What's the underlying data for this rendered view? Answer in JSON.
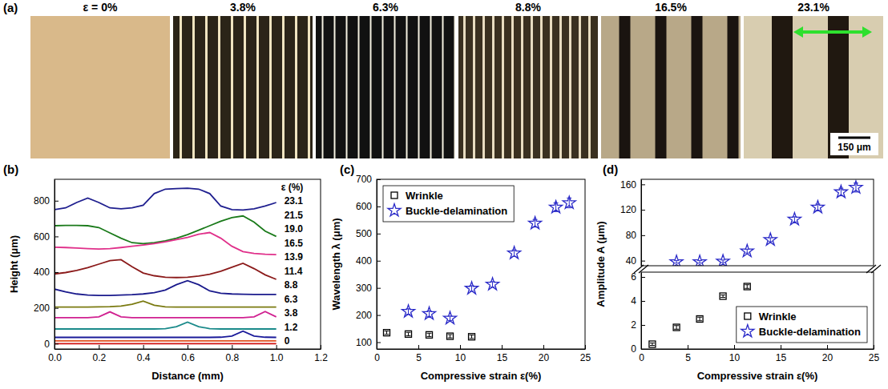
{
  "chart_data": [
    {
      "type": "image",
      "panel": "(a)",
      "labels": [
        "ε = 0%",
        "3.8%",
        "6.3%",
        "8.8%",
        "16.5%",
        "23.1%"
      ],
      "scale_bar": "150 μm"
    },
    {
      "type": "line",
      "panel": "(b)",
      "x_label": "Distance (mm)",
      "y_label": "Height (μm)",
      "annotation": "ε (%)",
      "x": [
        0,
        0.05,
        0.1,
        0.15,
        0.2,
        0.25,
        0.3,
        0.35,
        0.4,
        0.45,
        0.5,
        0.55,
        0.6,
        0.65,
        0.7,
        0.75,
        0.8,
        0.85,
        0.9,
        0.95,
        1.0
      ],
      "xlim": [
        0,
        1.2
      ],
      "xticks": [
        {
          "value": 0,
          "label": "0.0"
        },
        0.2,
        0.4,
        0.6,
        0.8,
        {
          "value": 1,
          "label": "1.0"
        },
        1.2
      ],
      "ylim": [
        -30,
        920
      ],
      "yticks": [
        0,
        200,
        400,
        600,
        800
      ],
      "series": [
        {
          "name": "23.1",
          "color": "#1f1f8f",
          "values": [
            750,
            760,
            790,
            815,
            790,
            760,
            755,
            760,
            775,
            840,
            865,
            868,
            870,
            865,
            840,
            770,
            750,
            748,
            755,
            770,
            790
          ]
        },
        {
          "name": "21.5",
          "color": "#1a7a1a",
          "values": [
            660,
            662,
            662,
            660,
            650,
            620,
            590,
            565,
            560,
            565,
            575,
            590,
            610,
            635,
            660,
            685,
            705,
            715,
            680,
            630,
            600
          ]
        },
        {
          "name": "19.0",
          "color": "#e0308a",
          "values": [
            540,
            538,
            535,
            532,
            530,
            532,
            538,
            545,
            552,
            560,
            570,
            582,
            595,
            612,
            622,
            590,
            545,
            515,
            505,
            500,
            498
          ]
        },
        {
          "name": "16.5",
          "color": "#8b1a1a",
          "values": [
            390,
            398,
            410,
            425,
            445,
            465,
            470,
            430,
            395,
            380,
            372,
            370,
            372,
            378,
            388,
            405,
            428,
            450,
            420,
            385,
            360
          ]
        },
        {
          "name": "13.9",
          "color": "#1a1a8c",
          "values": [
            305,
            290,
            278,
            272,
            270,
            270,
            272,
            274,
            278,
            285,
            300,
            330,
            352,
            330,
            295,
            282,
            278,
            276,
            275,
            275,
            275
          ]
        },
        {
          "name": "11.4",
          "color": "#7a7a10",
          "values": [
            205,
            205,
            205,
            205,
            206,
            207,
            210,
            220,
            238,
            215,
            206,
            205,
            205,
            205,
            205,
            205,
            205,
            205,
            205,
            205,
            205
          ]
        },
        {
          "name": "8.8",
          "color": "#d02090",
          "values": [
            145,
            145,
            145,
            145,
            150,
            178,
            150,
            145,
            145,
            145,
            145,
            145,
            145,
            145,
            145,
            145,
            145,
            145,
            150,
            180,
            150
          ]
        },
        {
          "name": "6.3",
          "color": "#1a8a8a",
          "values": [
            82,
            82,
            82,
            82,
            82,
            82,
            82,
            82,
            82,
            82,
            84,
            95,
            120,
            95,
            84,
            82,
            82,
            82,
            82,
            82,
            82
          ]
        },
        {
          "name": "3.8",
          "color": "#1a1a9a",
          "values": [
            35,
            35,
            35,
            35,
            35,
            35,
            35,
            35,
            35,
            35,
            35,
            35,
            35,
            35,
            35,
            36,
            42,
            70,
            42,
            36,
            35
          ]
        },
        {
          "name": "1.2",
          "color": "#e05020",
          "values": [
            15,
            15,
            15,
            15,
            15,
            15,
            15,
            15,
            15,
            15,
            15,
            15,
            15,
            15,
            15,
            15,
            15,
            15,
            15,
            15,
            15
          ]
        },
        {
          "name": "0",
          "color": "#d01010",
          "values": [
            0,
            0,
            0,
            0,
            0,
            0,
            0,
            0,
            0,
            0,
            0,
            0,
            0,
            0,
            0,
            0,
            0,
            0,
            0,
            0,
            0
          ]
        }
      ]
    },
    {
      "type": "scatter",
      "panel": "(c)",
      "x_label": "Compressive strain ε(%)",
      "y_label": "Wavelength λ (μm)",
      "xlim": [
        0,
        25
      ],
      "xticks": [
        0,
        5,
        10,
        15,
        20,
        25
      ],
      "ylim": [
        75,
        700
      ],
      "yticks": [
        100,
        200,
        300,
        400,
        500,
        600,
        700
      ],
      "legend": "upper left",
      "series": [
        {
          "name": "Wrinkle",
          "color": "#000000",
          "marker": "square",
          "x": [
            1.2,
            3.8,
            6.3,
            8.8,
            11.4
          ],
          "values": [
            135,
            130,
            127,
            122,
            120
          ],
          "errors": [
            6,
            6,
            6,
            6,
            6
          ]
        },
        {
          "name": "Buckle-delamination",
          "color": "#2a2ac8",
          "marker": "star",
          "x": [
            3.8,
            6.3,
            8.8,
            11.4,
            13.9,
            16.5,
            19.0,
            21.5,
            23.1
          ],
          "values": [
            213,
            205,
            188,
            298,
            313,
            428,
            538,
            597,
            613
          ],
          "errors": [
            10,
            10,
            8,
            10,
            10,
            12,
            14,
            16,
            18
          ]
        }
      ]
    },
    {
      "type": "scatter",
      "panel": "(d)",
      "x_label": "Compressive strain ε(%)",
      "y_label": "Amplitude A (μm)",
      "xlim": [
        0,
        25
      ],
      "xticks": [
        0,
        5,
        10,
        15,
        20,
        25
      ],
      "ylim": [
        0,
        168
      ],
      "y_break": [
        6.4,
        32
      ],
      "yticks": [
        0,
        2,
        4,
        6,
        40,
        80,
        120,
        160
      ],
      "legend": "lower right",
      "series": [
        {
          "name": "Wrinkle",
          "color": "#000000",
          "marker": "square",
          "x": [
            1.2,
            3.8,
            6.3,
            8.8,
            11.4
          ],
          "values": [
            0.4,
            1.8,
            2.5,
            4.4,
            5.2
          ],
          "errors": [
            0.1,
            0.15,
            0.15,
            0.1,
            0.15
          ]
        },
        {
          "name": "Buckle-delamination",
          "color": "#2a2ac8",
          "marker": "star",
          "x": [
            3.8,
            6.3,
            8.8,
            11.4,
            13.9,
            16.5,
            19.0,
            21.5,
            23.1
          ],
          "values": [
            38,
            38,
            39,
            55,
            73,
            105,
            124,
            148,
            155
          ],
          "errors": [
            2,
            2,
            2,
            3,
            3,
            4,
            5,
            6,
            7
          ]
        }
      ]
    }
  ]
}
